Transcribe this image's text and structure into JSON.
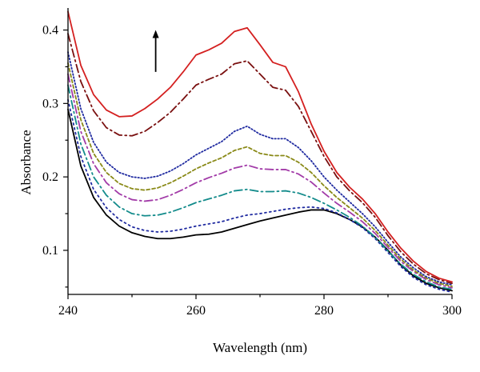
{
  "chart_data": {
    "type": "line",
    "title": "",
    "xlabel": "Wavelength (nm)",
    "ylabel": "Absorbance",
    "xlim": [
      240,
      300
    ],
    "ylim": [
      0.04,
      0.43
    ],
    "xticks": [
      240,
      260,
      280,
      300
    ],
    "yticks": [
      0.1,
      0.2,
      0.3,
      0.4
    ],
    "ytick_labels": [
      "0.1",
      "0.2",
      "0.3",
      "0.4"
    ],
    "grid": false,
    "legend": "none",
    "annotation": "up-arrow",
    "series": [
      {
        "color": "#000000",
        "dash": "solid",
        "x": [
          240,
          242,
          244,
          246,
          248,
          250,
          252,
          254,
          256,
          258,
          260,
          262,
          264,
          266,
          268,
          270,
          272,
          274,
          276,
          278,
          280,
          282,
          284,
          286,
          288,
          290,
          292,
          294,
          296,
          298,
          300
        ],
        "y": [
          0.292,
          0.215,
          0.172,
          0.148,
          0.133,
          0.124,
          0.119,
          0.116,
          0.116,
          0.118,
          0.121,
          0.122,
          0.125,
          0.13,
          0.135,
          0.14,
          0.144,
          0.148,
          0.152,
          0.155,
          0.155,
          0.15,
          0.142,
          0.132,
          0.118,
          0.1,
          0.08,
          0.065,
          0.055,
          0.049,
          0.045
        ]
      },
      {
        "color": "#1f2aa0",
        "dash": "2,4",
        "x": [
          240,
          242,
          244,
          246,
          248,
          250,
          252,
          254,
          256,
          258,
          260,
          262,
          264,
          266,
          268,
          270,
          272,
          274,
          276,
          278,
          280,
          282,
          284,
          286,
          288,
          290,
          292,
          294,
          296,
          298,
          300
        ],
        "y": [
          0.305,
          0.228,
          0.183,
          0.158,
          0.142,
          0.132,
          0.127,
          0.125,
          0.126,
          0.129,
          0.133,
          0.136,
          0.139,
          0.144,
          0.148,
          0.15,
          0.153,
          0.156,
          0.158,
          0.159,
          0.157,
          0.151,
          0.142,
          0.131,
          0.116,
          0.097,
          0.078,
          0.063,
          0.053,
          0.047,
          0.043
        ]
      },
      {
        "color": "#138b8b",
        "dash": "10,4,2,4",
        "x": [
          240,
          242,
          244,
          246,
          248,
          250,
          252,
          254,
          256,
          258,
          260,
          262,
          264,
          266,
          268,
          270,
          272,
          274,
          276,
          278,
          280,
          282,
          284,
          286,
          288,
          290,
          292,
          294,
          296,
          298,
          300
        ],
        "y": [
          0.325,
          0.245,
          0.2,
          0.175,
          0.159,
          0.15,
          0.147,
          0.148,
          0.152,
          0.158,
          0.165,
          0.17,
          0.175,
          0.181,
          0.183,
          0.18,
          0.18,
          0.181,
          0.178,
          0.172,
          0.164,
          0.155,
          0.145,
          0.133,
          0.118,
          0.099,
          0.081,
          0.067,
          0.057,
          0.05,
          0.047
        ]
      },
      {
        "color": "#a23ba8",
        "dash": "10,4,2,4",
        "x": [
          240,
          242,
          244,
          246,
          248,
          250,
          252,
          254,
          256,
          258,
          260,
          262,
          264,
          266,
          268,
          270,
          272,
          274,
          276,
          278,
          280,
          282,
          284,
          286,
          288,
          290,
          292,
          294,
          296,
          298,
          300
        ],
        "y": [
          0.34,
          0.262,
          0.218,
          0.192,
          0.177,
          0.169,
          0.167,
          0.169,
          0.175,
          0.183,
          0.192,
          0.199,
          0.205,
          0.212,
          0.216,
          0.211,
          0.21,
          0.21,
          0.204,
          0.193,
          0.178,
          0.164,
          0.152,
          0.139,
          0.123,
          0.104,
          0.085,
          0.071,
          0.06,
          0.053,
          0.049
        ]
      },
      {
        "color": "#8a8a18",
        "dash": "4,3",
        "x": [
          240,
          242,
          244,
          246,
          248,
          250,
          252,
          254,
          256,
          258,
          260,
          262,
          264,
          266,
          268,
          270,
          272,
          274,
          276,
          278,
          280,
          282,
          284,
          286,
          288,
          290,
          292,
          294,
          296,
          298,
          300
        ],
        "y": [
          0.355,
          0.278,
          0.232,
          0.206,
          0.191,
          0.184,
          0.182,
          0.185,
          0.192,
          0.201,
          0.211,
          0.219,
          0.226,
          0.236,
          0.241,
          0.232,
          0.229,
          0.229,
          0.22,
          0.206,
          0.188,
          0.172,
          0.158,
          0.144,
          0.127,
          0.107,
          0.088,
          0.073,
          0.062,
          0.055,
          0.051
        ]
      },
      {
        "color": "#1f2aa0",
        "dash": "1.5,2.5",
        "x": [
          240,
          242,
          244,
          246,
          248,
          250,
          252,
          254,
          256,
          258,
          260,
          262,
          264,
          266,
          268,
          270,
          272,
          274,
          276,
          278,
          280,
          282,
          284,
          286,
          288,
          290,
          292,
          294,
          296,
          298,
          300
        ],
        "y": [
          0.37,
          0.293,
          0.247,
          0.22,
          0.206,
          0.2,
          0.198,
          0.201,
          0.208,
          0.218,
          0.23,
          0.239,
          0.248,
          0.262,
          0.269,
          0.258,
          0.252,
          0.252,
          0.24,
          0.222,
          0.2,
          0.182,
          0.166,
          0.15,
          0.132,
          0.111,
          0.091,
          0.076,
          0.064,
          0.057,
          0.053
        ]
      },
      {
        "color": "#7a1010",
        "dash": "10,4,2,4",
        "x": [
          240,
          242,
          244,
          246,
          248,
          250,
          252,
          254,
          256,
          258,
          260,
          262,
          264,
          266,
          268,
          270,
          272,
          274,
          276,
          278,
          280,
          282,
          284,
          286,
          288,
          290,
          292,
          294,
          296,
          298,
          300
        ],
        "y": [
          0.395,
          0.33,
          0.29,
          0.267,
          0.257,
          0.256,
          0.262,
          0.274,
          0.288,
          0.306,
          0.325,
          0.333,
          0.34,
          0.354,
          0.358,
          0.34,
          0.322,
          0.318,
          0.296,
          0.262,
          0.228,
          0.2,
          0.181,
          0.165,
          0.145,
          0.12,
          0.098,
          0.081,
          0.068,
          0.06,
          0.055
        ]
      },
      {
        "color": "#d42020",
        "dash": "solid",
        "x": [
          240,
          242,
          244,
          246,
          248,
          250,
          252,
          254,
          256,
          258,
          260,
          262,
          264,
          266,
          268,
          270,
          272,
          274,
          276,
          278,
          280,
          282,
          284,
          286,
          288,
          290,
          292,
          294,
          296,
          298,
          300
        ],
        "y": [
          0.425,
          0.352,
          0.312,
          0.291,
          0.282,
          0.283,
          0.293,
          0.306,
          0.322,
          0.343,
          0.366,
          0.373,
          0.382,
          0.398,
          0.403,
          0.38,
          0.356,
          0.35,
          0.316,
          0.272,
          0.235,
          0.206,
          0.186,
          0.17,
          0.15,
          0.125,
          0.103,
          0.085,
          0.071,
          0.062,
          0.057
        ]
      }
    ]
  }
}
